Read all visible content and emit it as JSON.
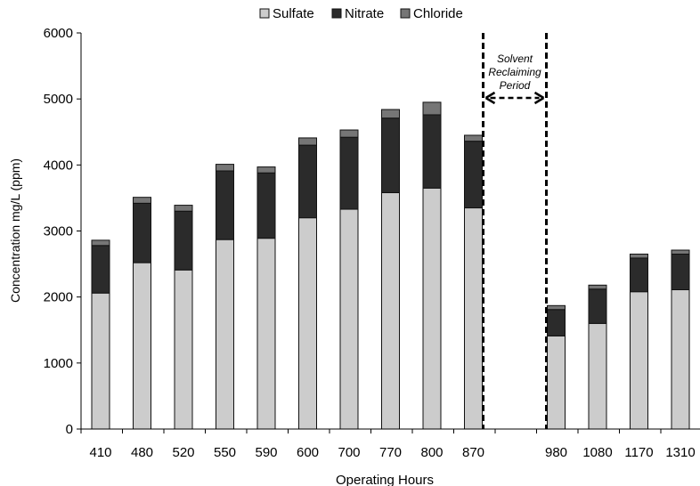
{
  "chart_data": {
    "type": "bar",
    "stacked": true,
    "categories": [
      "410",
      "480",
      "520",
      "550",
      "590",
      "600",
      "700",
      "770",
      "800",
      "870",
      "",
      "980",
      "1080",
      "1170",
      "1310"
    ],
    "series": [
      {
        "name": "Sulfate",
        "color": "#cccccc",
        "values": [
          2060,
          2520,
          2410,
          2870,
          2890,
          3200,
          3330,
          3580,
          3650,
          3350,
          null,
          1410,
          1600,
          2080,
          2110
        ]
      },
      {
        "name": "Nitrate",
        "color": "#2b2b2b",
        "values": [
          720,
          900,
          890,
          1040,
          990,
          1100,
          1090,
          1130,
          1110,
          1010,
          null,
          400,
          520,
          510,
          540
        ]
      },
      {
        "name": "Chloride",
        "color": "#767676",
        "values": [
          80,
          90,
          90,
          100,
          90,
          110,
          110,
          130,
          190,
          90,
          null,
          60,
          60,
          60,
          60
        ]
      }
    ],
    "xlabel": "Operating Hours",
    "ylabel": "Concentration mg/L (ppm)",
    "ylim": [
      0,
      6000
    ],
    "yticks": [
      "0",
      "1000",
      "2000",
      "3000",
      "4000",
      "5000",
      "6000"
    ],
    "grid": false,
    "legend_position": "top-center",
    "annotation": {
      "lines": [
        "Solvent",
        "Reclaiming",
        "Period"
      ],
      "between_categories": [
        "870",
        "980"
      ],
      "marker": "dashed vertical lines with double-headed dashed arrow"
    }
  }
}
